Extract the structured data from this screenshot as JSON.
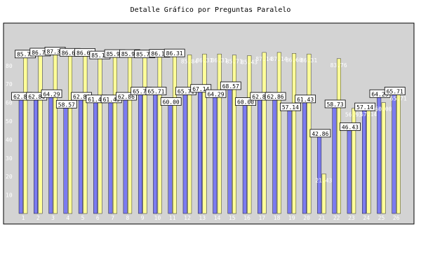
{
  "chart_data": {
    "type": "bar",
    "title": "Detalle Gráfico por Preguntas Paralelo",
    "xlabel": "",
    "ylabel": "",
    "ylim": [
      0,
      100
    ],
    "yticks": [
      10,
      20,
      30,
      40,
      50,
      60,
      70,
      80
    ],
    "grid": false,
    "legend": "none",
    "categories": [
      "1",
      "2",
      "3",
      "4",
      "5",
      "6",
      "7",
      "8",
      "9",
      "10",
      "11",
      "12",
      "13",
      "14",
      "15",
      "16",
      "17",
      "18",
      "19",
      "20",
      "21",
      "22",
      "23",
      "24",
      "25",
      "26"
    ],
    "series": [
      {
        "values": [
          62.86,
          62.86,
          64.29,
          58.57,
          62.86,
          61.43,
          61.43,
          62.86,
          65.71,
          65.71,
          60.0,
          65.71,
          67.14,
          64.29,
          68.57,
          60.0,
          62.86,
          62.86,
          57.14,
          61.43,
          42.86,
          58.73,
          46.43,
          57.14,
          64.29,
          65.71
        ]
      },
      {
        "values": [
          85.71,
          86.76,
          87.36,
          86.64,
          86.6,
          85.18,
          85.97,
          85.97,
          85.76,
          86.11,
          86.31,
          85.84,
          86.31,
          86.31,
          85.71,
          85.43,
          87.14,
          87.14,
          86.6,
          86.31,
          21.43,
          83.76,
          56.93,
          57.14,
          60.0,
          65.71
        ]
      }
    ],
    "colors": {
      "series1": "#7b7bf0",
      "series2": "#ffff99",
      "plot_bg": "#d3d3d3",
      "label_box": "#ffffff"
    }
  }
}
